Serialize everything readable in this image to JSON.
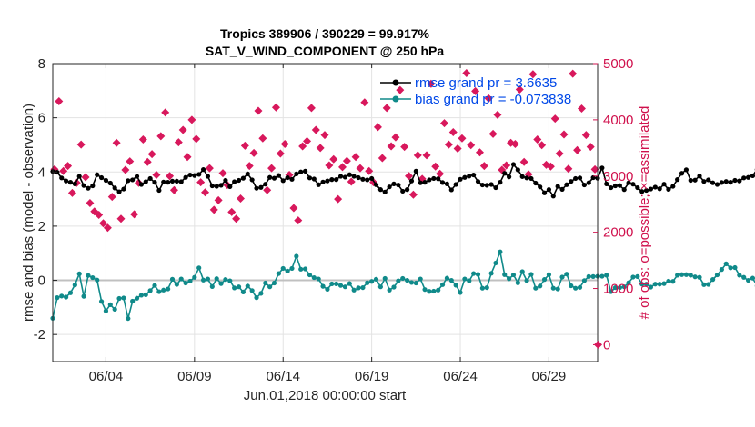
{
  "chart_data": {
    "type": "line",
    "title_line1": "Tropics 389906 / 390229 = 99.917%",
    "title_line2": "SAT_V_WIND_COMPONENT @ 250 hPa",
    "xlabel": "Jun.01,2018 00:00:00 start",
    "ylabel_left": "rmse and bias (model - observation)",
    "ylabel_right": "# of obs: o=possible; ×=assimilated",
    "xlim": [
      0,
      30.75
    ],
    "ylim_left": [
      -3,
      8
    ],
    "ylim_right": [
      -300,
      5000
    ],
    "x_ticks": [
      {
        "x": 3,
        "label": "06/04"
      },
      {
        "x": 8,
        "label": "06/09"
      },
      {
        "x": 13,
        "label": "06/14"
      },
      {
        "x": 18,
        "label": "06/19"
      },
      {
        "x": 23,
        "label": "06/24"
      },
      {
        "x": 28,
        "label": "06/29"
      }
    ],
    "y_ticks_left": [
      "-2",
      "0",
      "2",
      "4",
      "6",
      "8"
    ],
    "y_ticks_right": [
      "0",
      "1000",
      "2000",
      "3000",
      "4000",
      "5000"
    ],
    "zero_line": 0,
    "series": [
      {
        "name": "rmse grand pr = 3.6635",
        "color": "#000000",
        "values": [
          4.02,
          3.99,
          3.78,
          3.67,
          3.62,
          3.56,
          3.84,
          3.5,
          3.4,
          3.49,
          3.9,
          3.79,
          3.69,
          3.59,
          3.41,
          3.27,
          3.37,
          3.68,
          3.71,
          3.84,
          3.54,
          3.64,
          3.76,
          3.62,
          3.32,
          3.63,
          3.62,
          3.66,
          3.66,
          3.64,
          3.8,
          3.89,
          3.87,
          3.91,
          4.09,
          3.84,
          3.49,
          3.47,
          3.51,
          3.69,
          3.46,
          3.64,
          3.69,
          3.77,
          3.93,
          3.71,
          3.4,
          3.43,
          3.55,
          3.8,
          3.77,
          3.87,
          3.68,
          3.79,
          3.73,
          3.93,
          4.0,
          4.03,
          3.78,
          3.74,
          3.53,
          3.63,
          3.67,
          3.72,
          3.72,
          3.84,
          3.81,
          3.9,
          3.84,
          3.79,
          3.73,
          3.71,
          3.76,
          3.53,
          3.35,
          3.26,
          3.45,
          3.56,
          3.52,
          3.29,
          3.35,
          3.67,
          4.03,
          3.6,
          3.62,
          3.71,
          3.76,
          3.75,
          3.61,
          3.56,
          3.34,
          3.54,
          3.73,
          3.8,
          3.85,
          3.89,
          3.65,
          3.52,
          3.51,
          3.54,
          3.42,
          3.62,
          3.95,
          3.82,
          4.28,
          4.08,
          3.83,
          3.78,
          3.76,
          3.59,
          3.45,
          3.23,
          3.35,
          3.11,
          3.47,
          3.36,
          3.53,
          3.65,
          3.76,
          3.78,
          3.52,
          3.6,
          3.79,
          3.77,
          4.15,
          3.56,
          3.42,
          3.49,
          3.5,
          3.35,
          3.6,
          3.55,
          3.42,
          3.28,
          3.32,
          3.37,
          3.44,
          3.38,
          3.55,
          3.36,
          3.47,
          3.72,
          3.95,
          4.08,
          3.69,
          3.7,
          3.85,
          3.65,
          3.71,
          3.6,
          3.54,
          3.61,
          3.65,
          3.62,
          3.69,
          3.67,
          3.78,
          3.8,
          3.86,
          4.09,
          4.06,
          3.78,
          3.83,
          3.71,
          3.76,
          3.69,
          3.53,
          3.72,
          3.74,
          3.63,
          3.71,
          3.61,
          3.56,
          3.5,
          3.43,
          3.52,
          3.47,
          3.57,
          3.55,
          3.41,
          3.44,
          3.38,
          3.29,
          3.31,
          3.33,
          3.38,
          3.45,
          3.38,
          3.69,
          3.62,
          3.63,
          3.7,
          3.66,
          3.84,
          3.89,
          3.93,
          4.13,
          4.07,
          3.9,
          3.71,
          3.58,
          3.6,
          3.54,
          3.45,
          3.52,
          3.4,
          3.42,
          3.43,
          3.48,
          3.46,
          3.28,
          3.2,
          3.2,
          3.21,
          3.31,
          3.44,
          3.57,
          3.61,
          3.56,
          3.68,
          3.69,
          3.77,
          3.72,
          3.49,
          3.33,
          3.19,
          3.27,
          3.31,
          3.38,
          3.48,
          3.61,
          3.68,
          3.56,
          3.54,
          3.5,
          3.45,
          3.51,
          3.62,
          3.66,
          3.59,
          3.46,
          3.63,
          3.73,
          3.67
        ],
        "x_start": 0,
        "x_step": 0.25
      },
      {
        "name": "bias grand pr = -0.073838",
        "color": "#108a8a",
        "values": [
          -1.4,
          -0.64,
          -0.58,
          -0.62,
          -0.46,
          -0.17,
          0.24,
          -0.59,
          0.18,
          0.1,
          0.01,
          -0.78,
          -1.13,
          -0.9,
          -1.07,
          -0.67,
          -0.65,
          -1.41,
          -0.77,
          -0.66,
          -0.55,
          -0.53,
          -0.38,
          -0.19,
          -0.42,
          -0.36,
          -0.32,
          0.04,
          -0.15,
          0.05,
          -0.1,
          -0.03,
          0.11,
          0.46,
          0.01,
          0.05,
          -0.23,
          0.06,
          -0.12,
          0.03,
          -0.02,
          -0.28,
          -0.24,
          -0.43,
          -0.21,
          -0.38,
          -0.64,
          -0.48,
          -0.1,
          -0.24,
          -0.1,
          0.25,
          0.44,
          0.34,
          0.44,
          0.89,
          0.41,
          0.42,
          0.2,
          0.1,
          0.05,
          -0.22,
          -0.33,
          -0.13,
          -0.13,
          -0.19,
          -0.24,
          -0.12,
          -0.36,
          -0.28,
          -0.27,
          -0.09,
          -0.04,
          0.04,
          -0.24,
          0.07,
          -0.36,
          -0.25,
          -0.02,
          0.07,
          0.0,
          -0.08,
          -0.1,
          0.05,
          -0.34,
          -0.41,
          -0.4,
          -0.36,
          -0.16,
          0.08,
          0.0,
          -0.18,
          -0.45,
          0.05,
          -0.02,
          0.25,
          0.22,
          -0.29,
          -0.27,
          0.26,
          0.64,
          1.05,
          0.21,
          0.06,
          0.2,
          -0.09,
          0.32,
          -0.01,
          0.22,
          -0.29,
          -0.21,
          0.03,
          0.21,
          -0.29,
          -0.32,
          0.12,
          0.23,
          -0.2,
          -0.29,
          -0.26,
          -0.01,
          0.14,
          0.14,
          0.15,
          0.15,
          0.19,
          -0.42,
          -0.27,
          -0.27,
          -0.24,
          -0.09,
          0.12,
          0.14,
          -0.14,
          -0.14,
          -0.25,
          -0.14,
          -0.14,
          -0.12,
          -0.03,
          -0.04,
          0.19,
          0.21,
          0.21,
          0.19,
          0.13,
          0.11,
          -0.16,
          -0.15,
          0.03,
          0.2,
          0.4,
          0.61,
          0.46,
          0.47,
          0.19,
          0.11,
          0.0,
          0.08,
          -0.2,
          -0.18,
          -0.06,
          0.07,
          0.1,
          0.04,
          -0.15,
          -0.02,
          -0.01,
          0.03,
          -0.2,
          -0.14,
          -0.17,
          0.04,
          -0.29,
          -0.2,
          -0.05,
          0.0,
          -0.08,
          -0.21,
          0.16,
          0.02,
          0.18,
          0.18,
          -0.02,
          0.18,
          0.13,
          0.15,
          0.18,
          0.36,
          0.28,
          0.35,
          0.45,
          0.14,
          0.04,
          0.13,
          0.45,
          -0.02,
          -0.12,
          0.18,
          0.34,
          0.46,
          0.21,
          0.45,
          0.35,
          0.19,
          0.42,
          0.26,
          0.04,
          0.06,
          0.25,
          0.44,
          0.52,
          0.29,
          0.3,
          0.28,
          0.25,
          0.33,
          0.2,
          0.1,
          0.29,
          0.31,
          0.14,
          0.13,
          -0.01,
          -0.08,
          0.04,
          0.22,
          0.18,
          -0.12,
          0.01,
          0.14,
          -0.06,
          -0.19,
          0.15,
          0.05,
          0.02,
          -0.05,
          0.21,
          0.18,
          0.18,
          0.2,
          0.19,
          0.06
        ],
        "x_start": 0,
        "x_step": 0.25
      }
    ],
    "assimilated_series": {
      "name": "assimilated",
      "color": "#d8185c",
      "x": [
        0.1,
        0.35,
        0.6,
        0.85,
        1.1,
        1.35,
        1.6,
        1.85,
        2.1,
        2.35,
        2.6,
        2.85,
        3.1,
        3.35,
        3.6,
        3.85,
        4.1,
        4.35,
        4.6,
        4.85,
        5.1,
        5.35,
        5.6,
        5.85,
        6.1,
        6.35,
        6.6,
        6.85,
        7.1,
        7.35,
        7.6,
        7.85,
        8.1,
        8.35,
        8.6,
        8.85,
        9.1,
        9.35,
        9.6,
        9.85,
        10.1,
        10.35,
        10.6,
        10.85,
        11.1,
        11.35,
        11.6,
        11.85,
        12.1,
        12.35,
        12.6,
        12.85,
        13.1,
        13.35,
        13.6,
        13.85,
        14.1,
        14.35,
        14.6,
        14.85,
        15.1,
        15.35,
        15.6,
        15.85,
        16.1,
        16.35,
        16.6,
        16.85,
        17.1,
        17.35,
        17.6,
        17.85,
        18.1,
        18.35,
        18.6,
        18.85,
        19.1,
        19.35,
        19.6,
        19.85,
        20.1,
        20.35,
        20.6,
        20.85,
        21.1,
        21.35,
        21.6,
        21.85,
        22.1,
        22.35,
        22.6,
        22.85,
        23.1,
        23.35,
        23.6,
        23.85,
        24.1,
        24.35,
        24.6,
        24.85,
        25.1,
        25.35,
        25.6,
        25.85,
        26.1,
        26.35,
        26.6,
        26.85,
        27.1,
        27.35,
        27.6,
        27.85,
        28.1,
        28.35,
        28.6,
        28.85,
        29.1,
        29.35,
        29.6,
        29.85,
        30.1,
        30.35,
        30.6
      ],
      "values": [
        3120,
        4330,
        3090,
        3180,
        2700,
        2880,
        3560,
        2980,
        2520,
        2370,
        2310,
        2160,
        2080,
        2630,
        3590,
        2240,
        3110,
        3260,
        2320,
        2880,
        3650,
        3250,
        3390,
        3020,
        3710,
        4130,
        3000,
        2750,
        3600,
        3820,
        3340,
        4000,
        3660,
        2890,
        2710,
        3140,
        2400,
        2570,
        3050,
        2840,
        2360,
        2240,
        2600,
        3540,
        3180,
        3410,
        4160,
        3670,
        2750,
        3140,
        4220,
        3400,
        3570,
        3020,
        2430,
        2210,
        3530,
        3620,
        4210,
        3820,
        3500,
        3730,
        3190,
        3300,
        2590,
        3160,
        3270,
        2900,
        3340,
        3140,
        4310,
        3090,
        2890,
        3870,
        3320,
        4210,
        3530,
        3690,
        4530,
        3520,
        3000,
        2670,
        3370,
        2950,
        3370,
        4640,
        3170,
        3040,
        3940,
        3560,
        3780,
        3490,
        3670,
        4830,
        3550,
        4510,
        3420,
        3180,
        4380,
        3750,
        4090,
        3110,
        3190,
        3590,
        3570,
        4540,
        3250,
        3030,
        4810,
        3650,
        3550,
        3200,
        3170,
        4020,
        3400,
        3740,
        3130,
        4820,
        3460,
        4200,
        3730,
        3520,
        3120
      ]
    }
  }
}
